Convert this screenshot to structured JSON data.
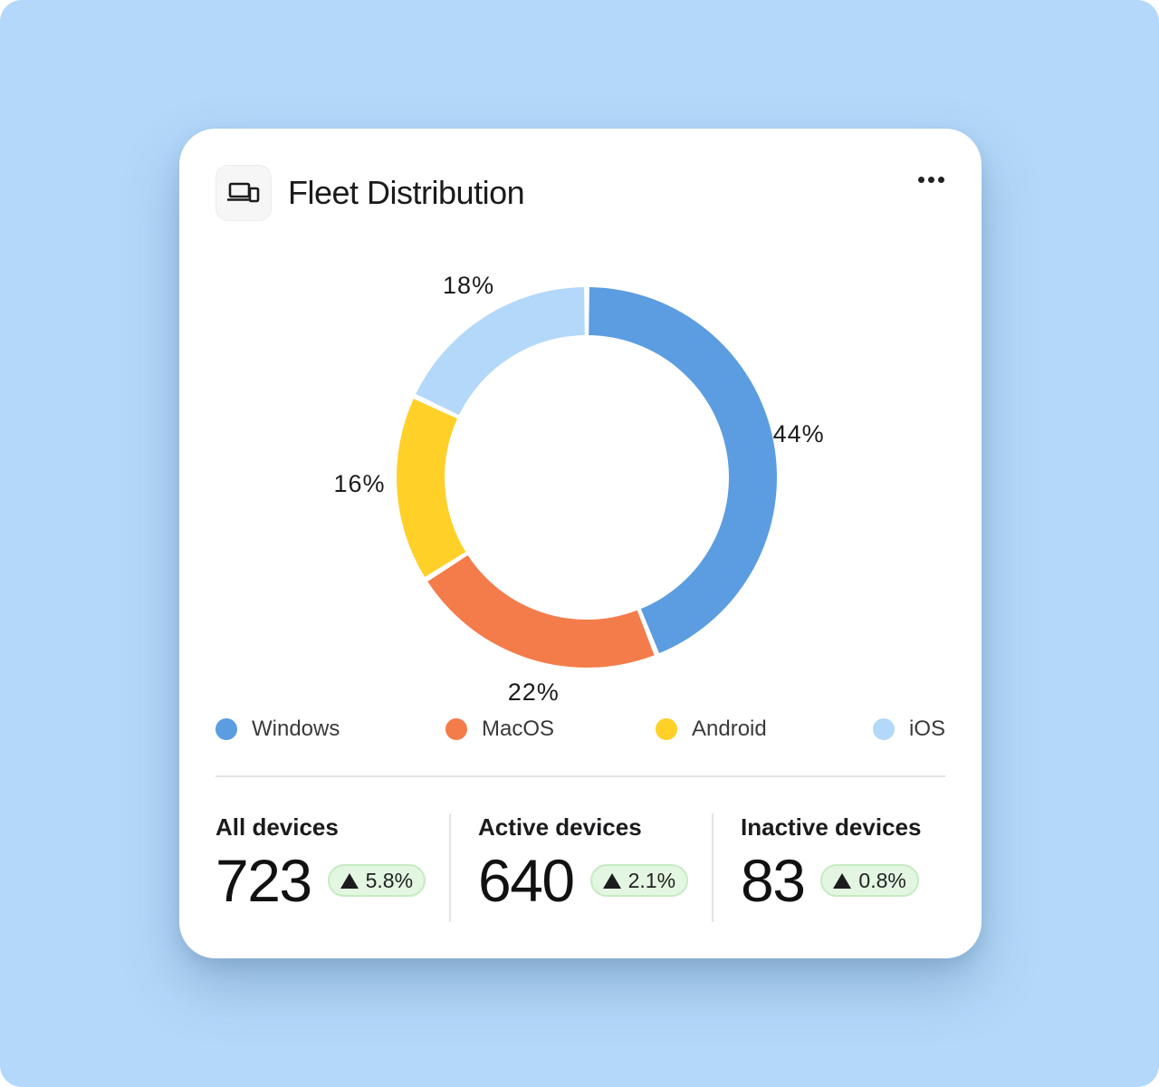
{
  "header": {
    "title": "Fleet Distribution",
    "icon": "devices-icon",
    "more_icon": "more-horizontal-icon"
  },
  "chart_data": {
    "type": "pie",
    "donut": true,
    "categories": [
      "Windows",
      "MacOS",
      "Android",
      "iOS"
    ],
    "values": [
      44,
      22,
      16,
      18
    ],
    "labels": [
      "44%",
      "22%",
      "16%",
      "18%"
    ],
    "colors": [
      "#5b9de0",
      "#f47c4b",
      "#ffd027",
      "#b3d8f9"
    ],
    "legend_position": "bottom"
  },
  "legend": [
    {
      "label": "Windows",
      "color": "#5b9de0"
    },
    {
      "label": "MacOS",
      "color": "#f47c4b"
    },
    {
      "label": "Android",
      "color": "#ffd027"
    },
    {
      "label": "iOS",
      "color": "#b3d8f9"
    }
  ],
  "stats": [
    {
      "title": "All devices",
      "value": "723",
      "change": "5.8%"
    },
    {
      "title": "Active devices",
      "value": "640",
      "change": "2.1%"
    },
    {
      "title": "Inactive devices",
      "value": "83",
      "change": "0.8%"
    }
  ],
  "colors": {
    "background": "#b3d8f9",
    "card": "#ffffff",
    "badge_bg": "#e3f6e1",
    "badge_border": "#c5ebc1"
  }
}
